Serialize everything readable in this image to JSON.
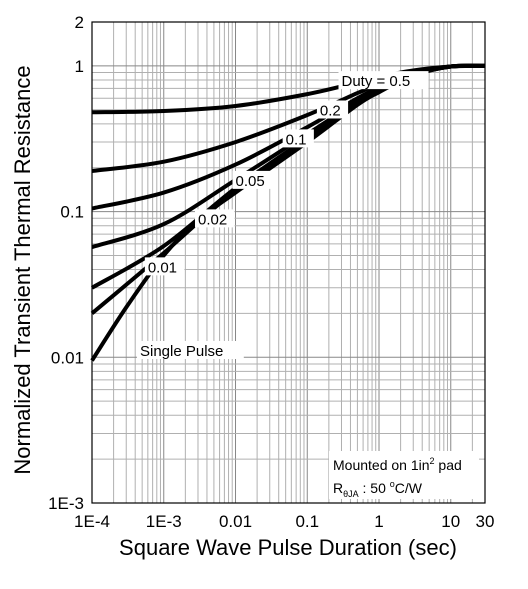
{
  "chart_data": {
    "type": "line",
    "title": "",
    "xlabel": "Square Wave Pulse Duration (sec)",
    "ylabel": "Normalized Transient Thermal Resistance",
    "x_scale": "log",
    "y_scale": "log",
    "xlim": [
      0.0001,
      30
    ],
    "ylim": [
      0.001,
      2
    ],
    "grid": true,
    "x_ticks": [
      {
        "value": 0.0001,
        "label": "1E-4"
      },
      {
        "value": 0.001,
        "label": "1E-3"
      },
      {
        "value": 0.01,
        "label": "0.01"
      },
      {
        "value": 0.1,
        "label": "0.1"
      },
      {
        "value": 1,
        "label": "1"
      },
      {
        "value": 10,
        "label": "10"
      },
      {
        "value": 30,
        "label": "30"
      }
    ],
    "y_ticks": [
      {
        "value": 2,
        "label": "2"
      },
      {
        "value": 1,
        "label": "1"
      },
      {
        "value": 0.1,
        "label": "0.1"
      },
      {
        "value": 0.01,
        "label": "0.01"
      },
      {
        "value": 0.001,
        "label": "1E-3"
      }
    ],
    "series": [
      {
        "name": "Duty = 0.5",
        "x": [
          0.0001,
          0.001,
          0.01,
          0.1,
          0.5,
          1,
          3,
          10,
          30
        ],
        "y": [
          0.48,
          0.49,
          0.53,
          0.64,
          0.77,
          0.84,
          0.93,
          0.99,
          1.0
        ]
      },
      {
        "name": "0.2",
        "x": [
          0.0001,
          0.001,
          0.01,
          0.1,
          0.5,
          1,
          3,
          10,
          30
        ],
        "y": [
          0.19,
          0.22,
          0.3,
          0.46,
          0.65,
          0.75,
          0.9,
          0.99,
          1.0
        ]
      },
      {
        "name": "0.1",
        "x": [
          0.0001,
          0.001,
          0.01,
          0.1,
          0.5,
          1,
          3,
          10,
          30
        ],
        "y": [
          0.105,
          0.135,
          0.21,
          0.38,
          0.6,
          0.71,
          0.88,
          0.99,
          1.0
        ]
      },
      {
        "name": "0.05",
        "x": [
          0.0001,
          0.001,
          0.01,
          0.1,
          0.5,
          1,
          3,
          10,
          30
        ],
        "y": [
          0.057,
          0.082,
          0.165,
          0.34,
          0.57,
          0.69,
          0.87,
          0.99,
          1.0
        ]
      },
      {
        "name": "0.02",
        "x": [
          0.0001,
          0.001,
          0.01,
          0.1,
          0.5,
          1,
          3,
          10,
          30
        ],
        "y": [
          0.03,
          0.058,
          0.145,
          0.32,
          0.55,
          0.68,
          0.87,
          0.99,
          1.0
        ]
      },
      {
        "name": "0.01",
        "x": [
          0.0001,
          0.001,
          0.01,
          0.1,
          0.5,
          1,
          3,
          10,
          30
        ],
        "y": [
          0.02,
          0.052,
          0.14,
          0.31,
          0.55,
          0.67,
          0.86,
          0.99,
          1.0
        ]
      },
      {
        "name": "Single Pulse",
        "x": [
          0.0001,
          0.0003,
          0.001,
          0.003,
          0.01,
          0.1,
          0.5,
          1,
          3,
          10,
          30
        ],
        "y": [
          0.0095,
          0.022,
          0.05,
          0.087,
          0.135,
          0.3,
          0.54,
          0.66,
          0.86,
          0.99,
          1.0
        ]
      }
    ],
    "curve_labels": [
      {
        "text": "Duty = 0.5",
        "series": 0
      },
      {
        "text": "0.2",
        "series": 1
      },
      {
        "text": "0.1",
        "series": 2
      },
      {
        "text": "0.05",
        "series": 3
      },
      {
        "text": "0.02",
        "series": 4
      },
      {
        "text": "0.01",
        "series": 5
      },
      {
        "text": "Single Pulse",
        "series": 6
      }
    ],
    "annotation": {
      "line1_pre": "Mounted on 1in",
      "line1_sup": "2",
      "line1_post": " pad",
      "line2_R": "R",
      "line2_sub": "θJA",
      "line2_mid": " : 50 ",
      "line2_sup": "o",
      "line2_post": "C/W"
    }
  }
}
